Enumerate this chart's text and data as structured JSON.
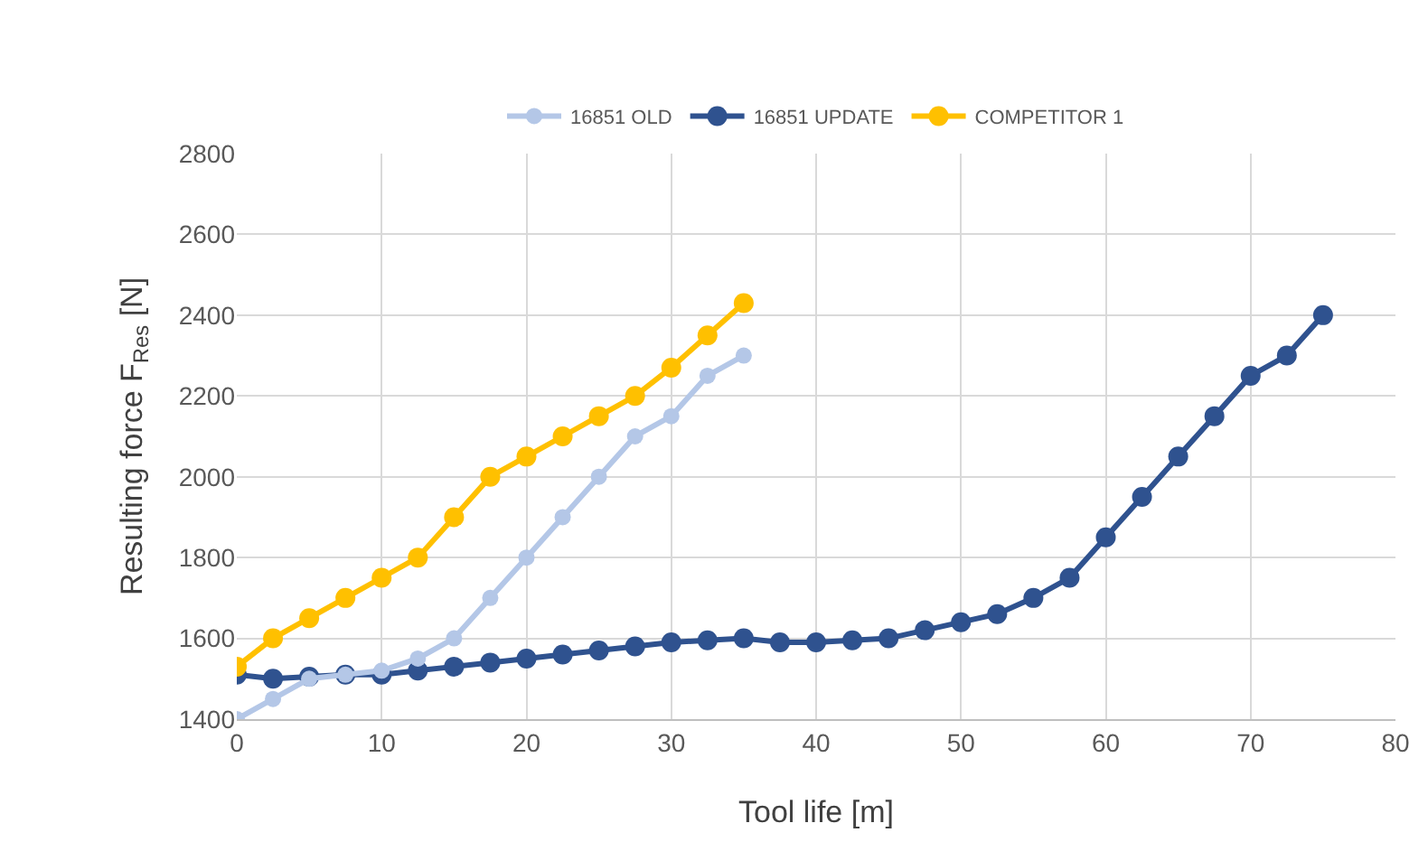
{
  "chart_data": {
    "type": "line",
    "xlabel": "Tool life [m]",
    "ylabel": "Resulting force F$_{Res}$ [N]",
    "xlim": [
      0,
      80
    ],
    "xticks": [
      0,
      10,
      20,
      30,
      40,
      50,
      60,
      70,
      80
    ],
    "ylim": [
      1400,
      2800
    ],
    "yticks": [
      1400,
      1600,
      1800,
      2000,
      2200,
      2400,
      2600,
      2800
    ],
    "grid": true,
    "legend": "top",
    "marker": "circle",
    "line_style": "solid",
    "series": [
      {
        "name": "16851 OLD",
        "color": "#b4c7e7",
        "x": [
          0,
          2.5,
          5,
          7.5,
          10,
          12.5,
          15,
          17.5,
          20,
          22.5,
          25,
          27.5,
          30,
          32.5,
          35
        ],
        "values": [
          1400,
          1450,
          1500,
          1510,
          1520,
          1550,
          1600,
          1700,
          1800,
          1900,
          2000,
          2100,
          2150,
          2250,
          2300
        ]
      },
      {
        "name": "16851 UPDATE",
        "color": "#2f528f",
        "x": [
          0,
          2.5,
          5,
          7.5,
          10,
          12.5,
          15,
          17.5,
          20,
          22.5,
          25,
          27.5,
          30,
          32.5,
          35,
          37.5,
          40,
          42.5,
          45,
          47.5,
          50,
          52.5,
          55,
          57.5,
          60,
          62.5,
          65,
          67.5,
          70,
          72.5,
          75
        ],
        "values": [
          1510,
          1500,
          1505,
          1510,
          1510,
          1520,
          1530,
          1540,
          1550,
          1560,
          1570,
          1580,
          1590,
          1595,
          1600,
          1590,
          1590,
          1595,
          1600,
          1620,
          1640,
          1660,
          1700,
          1750,
          1850,
          1950,
          2050,
          2150,
          2250,
          2300,
          2400
        ]
      },
      {
        "name": "COMPETITOR 1",
        "color": "#ffc000",
        "x": [
          0,
          2.5,
          5,
          7.5,
          10,
          12.5,
          15,
          17.5,
          20,
          22.5,
          25,
          27.5,
          30,
          32.5,
          35
        ],
        "values": [
          1530,
          1600,
          1650,
          1700,
          1750,
          1800,
          1900,
          2000,
          2050,
          2100,
          2150,
          2200,
          2270,
          2350,
          2430
        ]
      }
    ]
  }
}
